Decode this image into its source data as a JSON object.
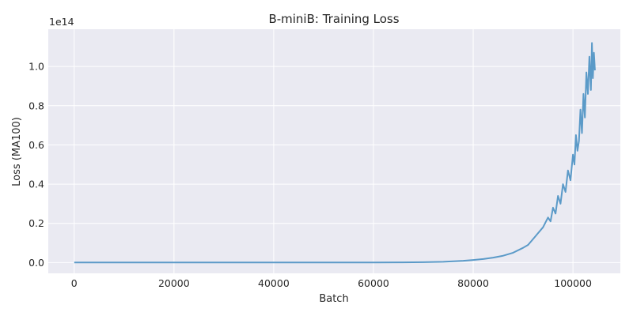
{
  "chart_data": {
    "type": "line",
    "title": "B-miniB: Training Loss",
    "xlabel": "Batch",
    "ylabel": "Loss (MA100)",
    "y_offset_label": "1e14",
    "xlim": [
      -5200,
      109500
    ],
    "ylim": [
      -0.055,
      1.19
    ],
    "x_ticks": [
      0,
      20000,
      40000,
      60000,
      80000,
      100000
    ],
    "x_tick_labels": [
      "0",
      "20000",
      "40000",
      "60000",
      "80000",
      "100000"
    ],
    "y_ticks": [
      0.0,
      0.2,
      0.4,
      0.6,
      0.8,
      1.0
    ],
    "y_tick_labels": [
      "0.0",
      "0.2",
      "0.4",
      "0.6",
      "0.8",
      "1.0"
    ],
    "grid": true,
    "legend": "none",
    "background_color": "#eaeaf2",
    "series": [
      {
        "color": "#5b9ac8",
        "x": [
          0,
          10000,
          20000,
          30000,
          40000,
          50000,
          60000,
          65000,
          70000,
          74000,
          78000,
          80000,
          82000,
          84000,
          86000,
          88000,
          90000,
          91000,
          92000,
          93000,
          94000,
          95000,
          95500,
          96000,
          96500,
          97000,
          97500,
          98000,
          98500,
          99000,
          99500,
          100000,
          100300,
          100600,
          100900,
          101200,
          101500,
          101800,
          102100,
          102400,
          102700,
          103000,
          103300,
          103600,
          103800,
          104000,
          104200,
          104400
        ],
        "y": [
          0.0,
          0.0,
          0.0,
          0.0,
          0.0,
          0.0,
          0.0005,
          0.001,
          0.002,
          0.004,
          0.009,
          0.013,
          0.018,
          0.025,
          0.035,
          0.05,
          0.075,
          0.09,
          0.12,
          0.15,
          0.18,
          0.23,
          0.21,
          0.28,
          0.25,
          0.34,
          0.3,
          0.4,
          0.36,
          0.47,
          0.42,
          0.55,
          0.5,
          0.65,
          0.57,
          0.62,
          0.78,
          0.66,
          0.86,
          0.74,
          0.97,
          0.86,
          1.05,
          0.88,
          1.12,
          0.94,
          1.07,
          0.98
        ]
      }
    ]
  }
}
